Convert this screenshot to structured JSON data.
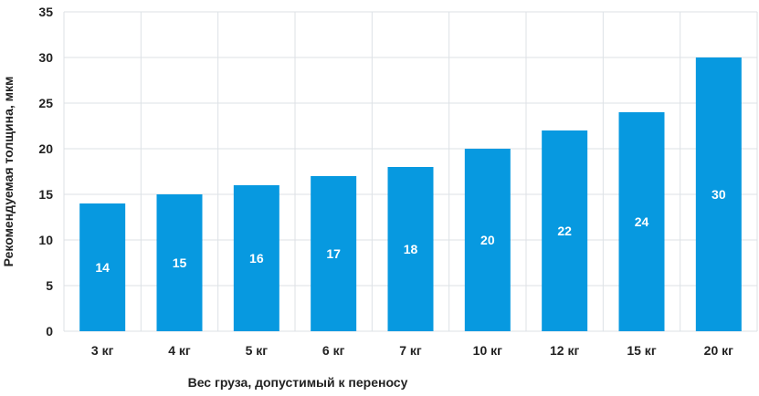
{
  "chart_data": {
    "type": "bar",
    "title": "",
    "xlabel": "Вес груза, допустимый к переносу",
    "ylabel": "Рекомендуемая толщина, мкм",
    "categories": [
      "3 кг",
      "4 кг",
      "5 кг",
      "6 кг",
      "7 кг",
      "10 кг",
      "12 кг",
      "15 кг",
      "20 кг"
    ],
    "values": [
      14,
      15,
      16,
      17,
      18,
      20,
      22,
      24,
      30
    ],
    "ylim": [
      0,
      35
    ],
    "yticks": [
      "0",
      "5",
      "10",
      "15",
      "20",
      "25",
      "30",
      "35"
    ],
    "grid": true,
    "legend": "none",
    "bar_color": "#0799e0",
    "label_color": "#ffffff"
  }
}
